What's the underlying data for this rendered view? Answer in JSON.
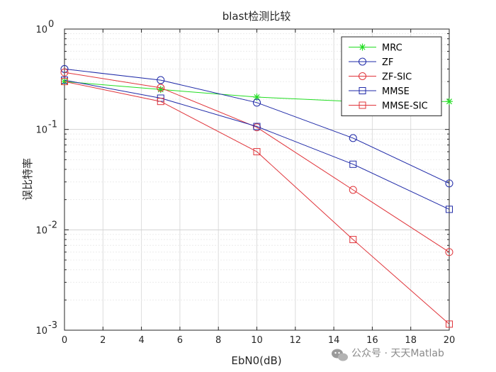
{
  "chart_data": {
    "type": "line",
    "title": "blast检测比较",
    "xlabel": "EbN0(dB)",
    "ylabel": "误比特率",
    "x_scale": "linear",
    "y_scale": "log",
    "xlim": [
      0,
      20
    ],
    "ylim": [
      0.001,
      1
    ],
    "x_ticks": [
      0,
      2,
      4,
      6,
      8,
      10,
      12,
      14,
      16,
      18,
      20
    ],
    "x_tick_labels": [
      "0",
      "2",
      "4",
      "6",
      "8",
      "10",
      "12",
      "14",
      "16",
      "18",
      "20"
    ],
    "y_ticks": [
      {
        "value": 1,
        "base": "10",
        "exp": "0"
      },
      {
        "value": 0.1,
        "base": "10",
        "exp": "-1"
      },
      {
        "value": 0.01,
        "base": "10",
        "exp": "-2"
      },
      {
        "value": 0.001,
        "base": "10",
        "exp": "-3"
      }
    ],
    "grid": true,
    "legend_position": "top-right",
    "x": [
      0,
      5,
      10,
      15,
      20
    ],
    "series": [
      {
        "name": "MRC",
        "color": "#22dd22",
        "marker": "star",
        "values": [
          0.3,
          0.25,
          0.21,
          0.19,
          0.19
        ]
      },
      {
        "name": "ZF",
        "color": "#1f2aa8",
        "marker": "circle",
        "values": [
          0.4,
          0.31,
          0.185,
          0.082,
          0.029
        ]
      },
      {
        "name": "ZF-SIC",
        "color": "#e0343a",
        "marker": "circle",
        "values": [
          0.37,
          0.26,
          0.105,
          0.025,
          0.006
        ]
      },
      {
        "name": "MMSE",
        "color": "#1f2aa8",
        "marker": "square",
        "values": [
          0.31,
          0.205,
          0.107,
          0.045,
          0.016
        ]
      },
      {
        "name": "MMSE-SIC",
        "color": "#e0343a",
        "marker": "square",
        "values": [
          0.3,
          0.19,
          0.06,
          0.008,
          0.00115
        ]
      }
    ]
  },
  "watermark": {
    "icon": "wechat-icon",
    "text": "公众号 · 天天Matlab"
  }
}
